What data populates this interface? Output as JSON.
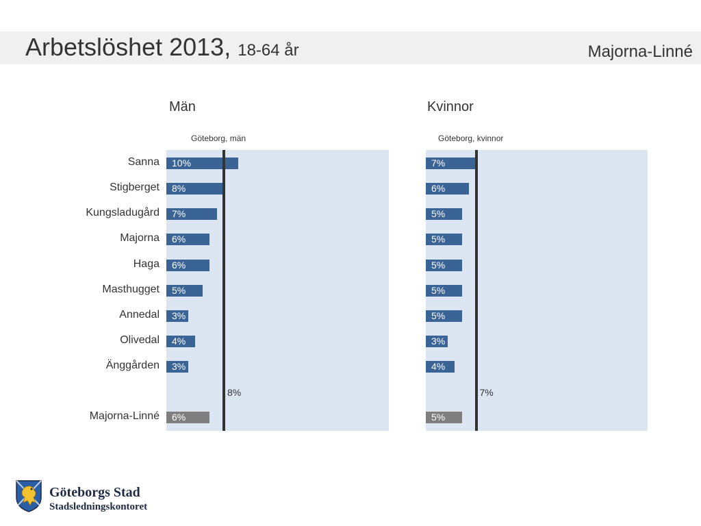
{
  "header": {
    "title": "Arbetslöshet 2013,",
    "subtitle": "18-64 år",
    "region": "Majorna-Linné"
  },
  "colors": {
    "bar": "#3a6396",
    "total_bar": "#7f7f7f",
    "plot_bg": "#dce6f2",
    "ref_line": "#333333",
    "header_band": "#f0f0f0"
  },
  "chart_data": [
    {
      "type": "bar",
      "orientation": "horizontal",
      "title": "Män",
      "reference_label": "Göteborg, män",
      "reference_value": 8,
      "reference_value_label": "8%",
      "categories": [
        "Sanna",
        "Stigberget",
        "Kungsladugård",
        "Majorna",
        "Haga",
        "Masthugget",
        "Annedal",
        "Olivedal",
        "Änggården",
        "Majorna-Linné"
      ],
      "values": [
        10,
        8,
        7,
        6,
        6,
        5,
        3,
        4,
        3,
        6
      ],
      "value_labels": [
        "10%",
        "8%",
        "7%",
        "6%",
        "6%",
        "5%",
        "3%",
        "4%",
        "3%",
        "6%"
      ],
      "total_category": "Majorna-Linné",
      "xlim": [
        0,
        31
      ]
    },
    {
      "type": "bar",
      "orientation": "horizontal",
      "title": "Kvinnor",
      "reference_label": "Göteborg, kvinnor",
      "reference_value": 7,
      "reference_value_label": "7%",
      "categories": [
        "Sanna",
        "Stigberget",
        "Kungsladugård",
        "Majorna",
        "Haga",
        "Masthugget",
        "Annedal",
        "Olivedal",
        "Änggården",
        "Majorna-Linné"
      ],
      "values": [
        7,
        6,
        5,
        5,
        5,
        5,
        5,
        3,
        4,
        5
      ],
      "value_labels": [
        "7%",
        "6%",
        "5%",
        "5%",
        "5%",
        "5%",
        "5%",
        "3%",
        "4%",
        "5%"
      ],
      "total_category": "Majorna-Linné",
      "xlim": [
        0,
        31
      ]
    }
  ],
  "logo": {
    "name": "Göteborgs Stad",
    "department": "Stadsledningskontoret",
    "icon": "goteborg-lion-crest-icon"
  }
}
